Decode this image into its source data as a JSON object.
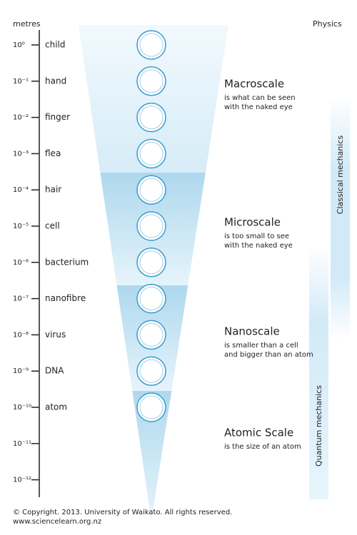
{
  "axis_label": "metres",
  "physics_label": "Physics",
  "levels": [
    {
      "power": "10⁰",
      "label": "child"
    },
    {
      "power": "10⁻¹",
      "label": "hand"
    },
    {
      "power": "10⁻²",
      "label": "finger"
    },
    {
      "power": "10⁻³",
      "label": "flea"
    },
    {
      "power": "10⁻⁴",
      "label": "hair"
    },
    {
      "power": "10⁻⁵",
      "label": "cell"
    },
    {
      "power": "10⁻⁶",
      "label": "bacterium"
    },
    {
      "power": "10⁻⁷",
      "label": "nanofibre"
    },
    {
      "power": "10⁻⁸",
      "label": "virus"
    },
    {
      "power": "10⁻⁹",
      "label": "DNA"
    },
    {
      "power": "10⁻¹⁰",
      "label": "atom"
    },
    {
      "power": "10⁻¹¹"
    },
    {
      "power": "10⁻¹²"
    }
  ],
  "scales": [
    {
      "title": "Macroscale",
      "description": [
        "is what can be seen",
        "with the naked eye"
      ]
    },
    {
      "title": "Microscale",
      "description": [
        "is too small to see",
        "with the naked eye"
      ]
    },
    {
      "title": "Nanoscale",
      "description": [
        "is smaller than a cell",
        "and bigger than an atom"
      ]
    },
    {
      "title": "Atomic Scale",
      "description": [
        "is the size of an atom"
      ]
    }
  ],
  "mechanics": [
    "Classical mechanics",
    "Quantum mechanics"
  ],
  "footer": [
    "© Copyright. 2013. University of Waikato. All rights reserved.",
    "www.sciencelearn.org.nz"
  ]
}
